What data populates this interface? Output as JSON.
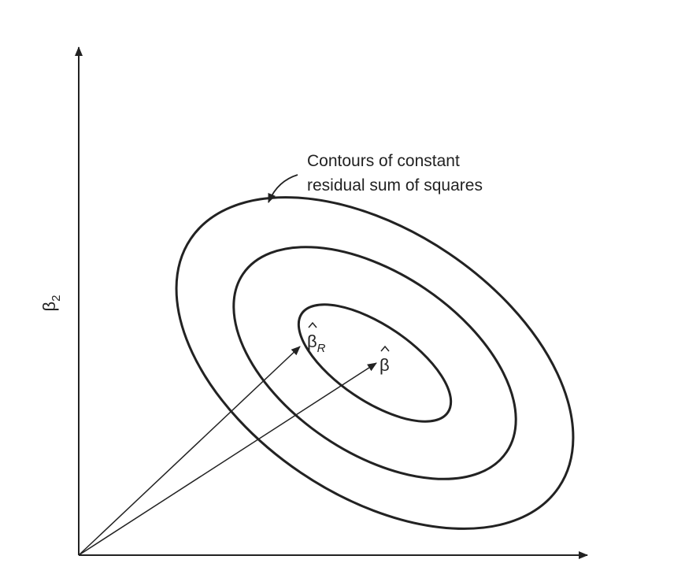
{
  "diagram": {
    "y_axis_label": {
      "symbol": "β",
      "subscript": "2"
    },
    "annotation": {
      "line1": "Contours of constant",
      "line2": "residual sum of squares"
    },
    "estimates": [
      {
        "symbol": "β",
        "subscript": "R"
      },
      {
        "symbol": "β",
        "subscript": ""
      }
    ],
    "contour_count": 3,
    "colors": {
      "line": "#222222",
      "background": "#ffffff"
    }
  }
}
